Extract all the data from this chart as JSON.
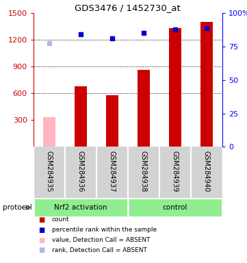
{
  "title": "GDS3476 / 1452730_at",
  "samples": [
    "GSM284935",
    "GSM284936",
    "GSM284937",
    "GSM284938",
    "GSM284939",
    "GSM284940"
  ],
  "bar_values": [
    null,
    680,
    580,
    860,
    1330,
    1400
  ],
  "bar_absent_values": [
    330,
    null,
    null,
    null,
    null,
    null
  ],
  "dot_values": [
    null,
    1260,
    1220,
    1280,
    1320,
    1330
  ],
  "dot_absent_values": [
    1160,
    null,
    null,
    null,
    null,
    null
  ],
  "bar_color": "#cc0000",
  "bar_absent_color": "#ffb6c1",
  "dot_color": "#0000cc",
  "dot_absent_color": "#b0b8e8",
  "ylim_left": [
    0,
    1500
  ],
  "ylim_right": [
    0,
    100
  ],
  "yticks_left": [
    300,
    600,
    900,
    1200,
    1500
  ],
  "yticks_right": [
    0,
    25,
    50,
    75,
    100
  ],
  "right_ytick_labels": [
    "0",
    "25",
    "50",
    "75",
    "100%"
  ],
  "grid_lines": [
    600,
    900,
    1200
  ],
  "sample_bg": "#d3d3d3",
  "nrf2_label": "Nrf2 activation",
  "control_label": "control",
  "protocol_label": "protocol",
  "legend_items": [
    {
      "color": "#cc0000",
      "label": "count"
    },
    {
      "color": "#0000cc",
      "label": "percentile rank within the sample"
    },
    {
      "color": "#ffb6c1",
      "label": "value, Detection Call = ABSENT"
    },
    {
      "color": "#b0b8e8",
      "label": "rank, Detection Call = ABSENT"
    }
  ]
}
